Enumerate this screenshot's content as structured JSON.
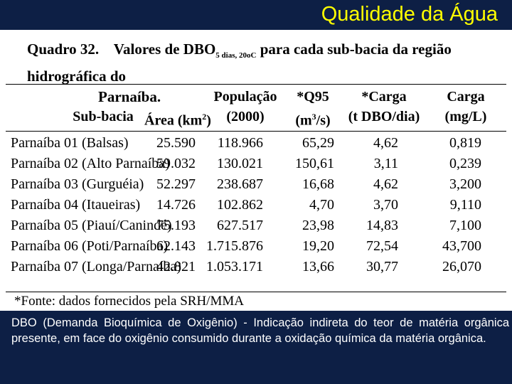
{
  "header": {
    "title": "Qualidade da Água"
  },
  "table": {
    "caption_label": "Quadro 32.",
    "caption_parts": [
      "Valores de DBO",
      "5 dias, 20oC",
      "para cada sub-bacia da região hidrográfica do",
      "Parnaíba."
    ],
    "headers": [
      {
        "lines": [
          [
            "Sub-bacia"
          ]
        ]
      },
      {
        "lines": [
          [
            "Área (km",
            "2",
            ")"
          ]
        ]
      },
      {
        "lines": [
          [
            "População"
          ],
          [
            "(2000)"
          ]
        ]
      },
      {
        "lines": [
          [
            "*Q95"
          ],
          [
            "(m",
            "3",
            "/s)"
          ]
        ]
      },
      {
        "lines": [
          [
            "*Carga"
          ],
          [
            "(t DBO/dia)"
          ]
        ]
      },
      {
        "lines": [
          [
            "Carga"
          ],
          [
            "(mg/L)"
          ]
        ]
      }
    ],
    "rows": [
      [
        "Parnaíba 01 (Balsas)",
        "25.590",
        "118.966",
        "65,29",
        "4,62",
        "0,819"
      ],
      [
        "Parnaíba 02 (Alto Parnaíba)",
        "59.032",
        "130.021",
        "150,61",
        "3,11",
        "0,239"
      ],
      [
        "Parnaíba 03 (Gurguéia)",
        "52.297",
        "238.687",
        "16,68",
        "4,62",
        "3,200"
      ],
      [
        "Parnaíba 04 (Itaueiras)",
        "14.726",
        "102.862",
        "4,70",
        "3,70",
        "9,110"
      ],
      [
        "Parnaíba 05 (Piauí/Canindé)",
        "75.193",
        "627.517",
        "23,98",
        "14,83",
        "7,100"
      ],
      [
        "Parnaíba 06 (Poti/Parnaíba)",
        "62.143",
        "1.715.876",
        "19,20",
        "72,54",
        "43,700"
      ],
      [
        "Parnaíba 07 (Longa/Parnaíba)",
        "42.821",
        "1.053.171",
        "13,66",
        "30,77",
        "26,070"
      ]
    ],
    "footnote": "*Fonte: dados fornecidos pela SRH/MMA"
  },
  "body": {
    "text": "DBO (Demanda Bioquímica de Oxigênio) - Indicação indireta do teor de matéria orgânica presente, em face do oxigênio consumido durante a oxidação química da matéria orgânica."
  }
}
